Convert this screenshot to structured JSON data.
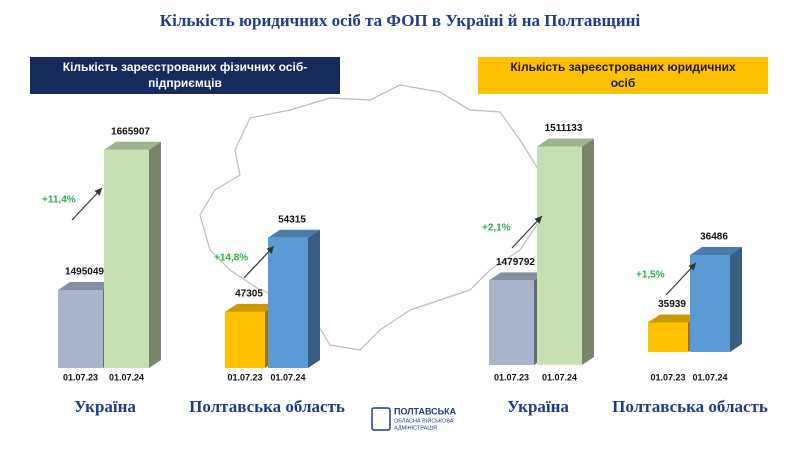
{
  "title": "Кількість юридичних осіб та ФОП в Україні й на Полтавщині",
  "sections": [
    {
      "lines": [
        "Кількість зареєстрованих фізичних осіб-",
        "підприємців"
      ]
    },
    {
      "lines": [
        "Кількість зареєстрованих юридичних",
        "осіб"
      ]
    }
  ],
  "logo": {
    "lines": [
      "ПОЛТАВСЬКА",
      "ОБЛАСНА ВІЙСЬКОВА",
      "АДМІНІСТРАЦІЯ"
    ]
  },
  "chart_data": [
    {
      "type": "bar",
      "caption": "Україна",
      "annotation": "+11,4%",
      "categories": [
        "01.07.23",
        "01.07.24"
      ],
      "values": [
        1495049,
        1665907
      ],
      "colors": [
        "#a9b4c8",
        "#c6e0b4"
      ],
      "ylim": [
        1400000,
        1690000
      ]
    },
    {
      "type": "bar",
      "caption": "Полтавська область",
      "annotation": "+14,8%",
      "categories": [
        "01.07.23",
        "01.07.24"
      ],
      "values": [
        47305,
        54315
      ],
      "colors": [
        "#ffc000",
        "#5b9bd5"
      ],
      "ylim": [
        42000,
        64500
      ]
    },
    {
      "type": "bar",
      "caption": "Україна",
      "annotation": "+2,1%",
      "categories": [
        "01.07.23",
        "01.07.24"
      ],
      "values": [
        1479792,
        1511133
      ],
      "colors": [
        "#a9b4c8",
        "#c6e0b4"
      ],
      "ylim": [
        1460000,
        1515000
      ]
    },
    {
      "type": "bar",
      "caption": "Полтавська область",
      "annotation": "+1,5%",
      "categories": [
        "01.07.23",
        "01.07.24"
      ],
      "values": [
        35939,
        36486
      ],
      "colors": [
        "#ffc000",
        "#5b9bd5"
      ],
      "ylim": [
        35700,
        37500
      ]
    }
  ]
}
